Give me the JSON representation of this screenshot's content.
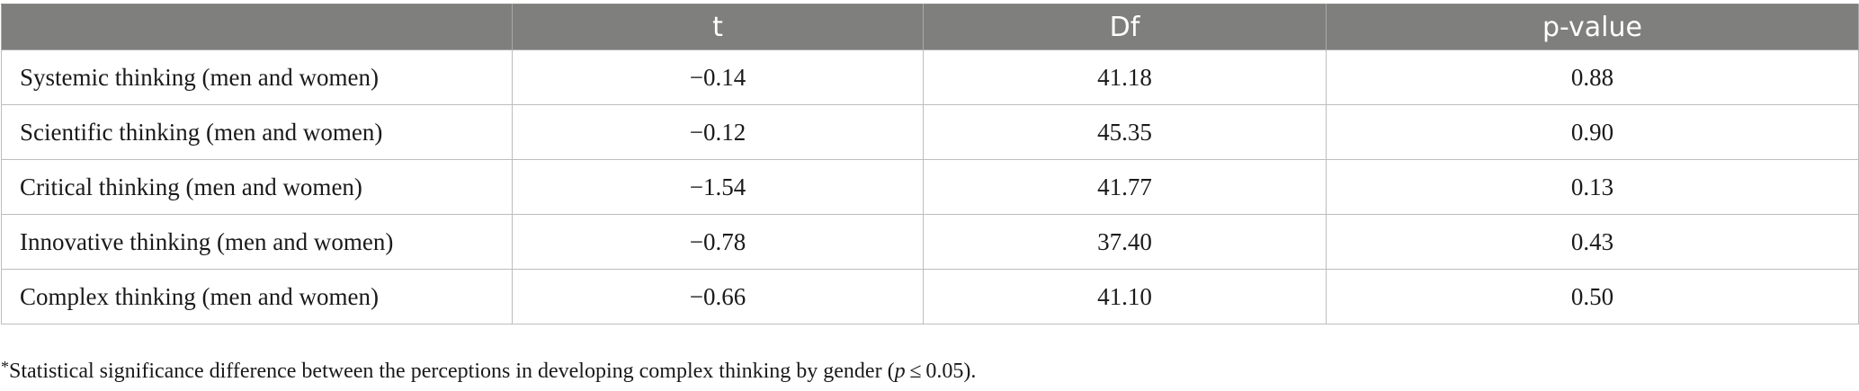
{
  "table": {
    "headers": [
      "",
      "t",
      "Df",
      "p-value"
    ],
    "rows": [
      [
        "Systemic thinking (men and women)",
        "−0.14",
        "41.18",
        "0.88"
      ],
      [
        "Scientific thinking (men and women)",
        "−0.12",
        "45.35",
        "0.90"
      ],
      [
        "Critical thinking (men and women)",
        "−1.54",
        "41.77",
        "0.13"
      ],
      [
        "Innovative thinking (men and women)",
        "−0.78",
        "37.40",
        "0.43"
      ],
      [
        "Complex thinking (men and women)",
        "−0.66",
        "41.10",
        "0.50"
      ]
    ]
  },
  "footnote": {
    "marker": "*",
    "text_before": "Statistical significance difference between the perceptions in developing complex thinking by gender (",
    "italic": "p",
    "text_after": " ≤ 0.05)."
  }
}
